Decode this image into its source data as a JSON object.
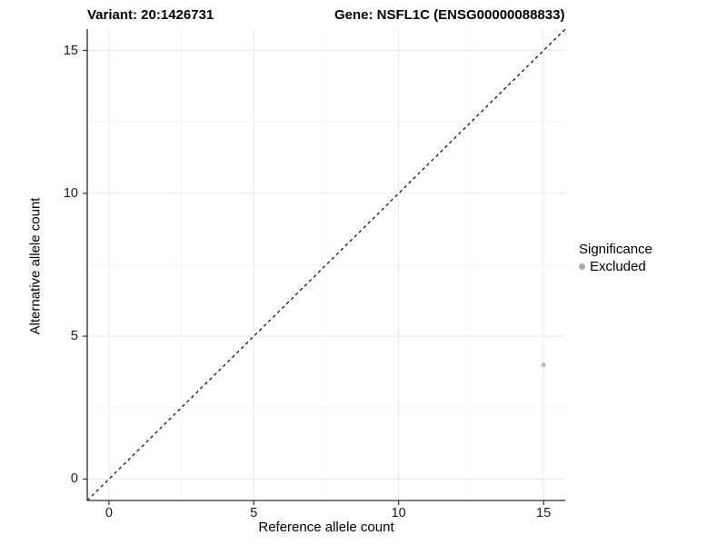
{
  "titles": {
    "variant": "Variant: 20:1426731",
    "gene": "Gene: NSFL1C (ENSG00000088833)"
  },
  "chart_data": {
    "type": "scatter",
    "title": "Variant: 20:1426731    Gene: NSFL1C (ENSG00000088833)",
    "xlabel": "Reference allele count",
    "ylabel": "Alternative allele count",
    "xlim": [
      -0.75,
      15.75
    ],
    "ylim": [
      -0.75,
      15.75
    ],
    "x_ticks": [
      0,
      5,
      10,
      15
    ],
    "y_ticks": [
      0,
      5,
      10,
      15
    ],
    "x_minor_ticks": [
      2.5,
      7.5,
      12.5
    ],
    "y_minor_ticks": [
      2.5,
      7.5,
      12.5
    ],
    "grid": "on",
    "points": [
      {
        "x": 15,
        "y": 4,
        "series": "Excluded"
      }
    ],
    "reference_line": {
      "type": "identity",
      "style": "dashed",
      "color": "#000000"
    },
    "legend": {
      "title": "Significance",
      "position": "right",
      "entries": [
        {
          "label": "Excluded",
          "color": "#ABABAB"
        }
      ]
    },
    "colors": {
      "point": "#BDBDBD",
      "grid_major": "#E7E7E7",
      "grid_minor": "#F4F4F4",
      "axis_line": "#2b2b2b",
      "tick_mark": "#333333",
      "text": "#000000"
    }
  }
}
